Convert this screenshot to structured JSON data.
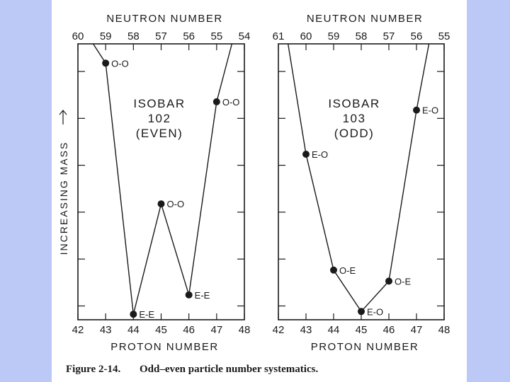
{
  "page": {
    "background": "#bcc8f6",
    "paper": "#ffffff",
    "ink": "#1a1a1a"
  },
  "caption": {
    "figure_label": "Figure 2-14.",
    "text": "Odd–even particle number systematics."
  },
  "y_axis_label": "INCREASING MASS",
  "chart_data": [
    {
      "type": "line",
      "title": "ISOBAR 102 (EVEN)",
      "title_lines": [
        "ISOBAR",
        "102",
        "(EVEN)"
      ],
      "xlabel": "PROTON NUMBER",
      "top_xlabel": "NEUTRON NUMBER",
      "xlim": [
        42,
        48
      ],
      "ylim": [
        0,
        100
      ],
      "x_ticks": [
        "42",
        "43",
        "44",
        "45",
        "46",
        "47",
        "48"
      ],
      "top_ticks": [
        "60",
        "59",
        "58",
        "57",
        "56",
        "55",
        "54"
      ],
      "points": [
        {
          "x": 43,
          "y": 93,
          "label": "O-O"
        },
        {
          "x": 44,
          "y": 2,
          "label": "E-E"
        },
        {
          "x": 45,
          "y": 42,
          "label": "O-O"
        },
        {
          "x": 46,
          "y": 9,
          "label": "E-E"
        },
        {
          "x": 47,
          "y": 79,
          "label": "O-O"
        }
      ],
      "extensions": [
        {
          "from": [
            43,
            93
          ],
          "to": [
            42.55,
            100
          ]
        },
        {
          "from": [
            47,
            79
          ],
          "to": [
            47.55,
            100
          ]
        }
      ]
    },
    {
      "type": "line",
      "title": "ISOBAR 103 (ODD)",
      "title_lines": [
        "ISOBAR",
        "103",
        "(ODD)"
      ],
      "xlabel": "PROTON NUMBER",
      "top_xlabel": "NEUTRON NUMBER",
      "xlim": [
        42,
        48
      ],
      "ylim": [
        0,
        100
      ],
      "x_ticks": [
        "42",
        "43",
        "44",
        "45",
        "46",
        "47",
        "48"
      ],
      "top_ticks": [
        "61",
        "60",
        "59",
        "58",
        "57",
        "56",
        "55"
      ],
      "points": [
        {
          "x": 43,
          "y": 60,
          "label": "E-O"
        },
        {
          "x": 44,
          "y": 18,
          "label": "O-E"
        },
        {
          "x": 45,
          "y": 3,
          "label": "E-O"
        },
        {
          "x": 46,
          "y": 14,
          "label": "O-E"
        },
        {
          "x": 47,
          "y": 76,
          "label": "E-O"
        }
      ],
      "extensions": [
        {
          "from": [
            43,
            60
          ],
          "to": [
            42.35,
            100
          ]
        },
        {
          "from": [
            47,
            76
          ],
          "to": [
            47.45,
            100
          ]
        }
      ]
    }
  ]
}
